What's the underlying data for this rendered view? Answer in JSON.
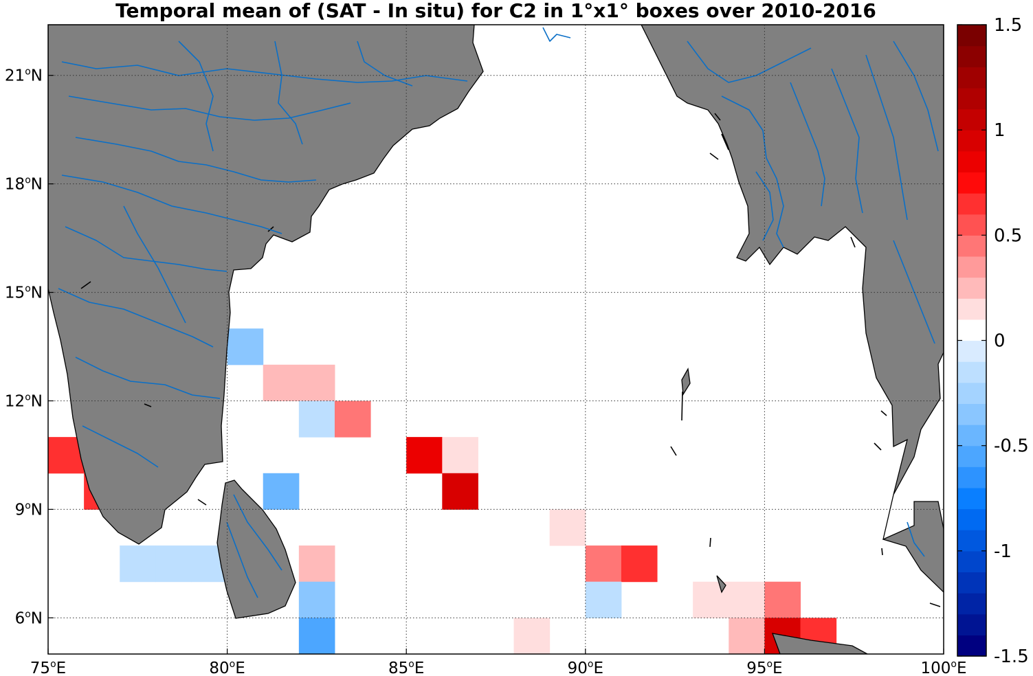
{
  "title": "Temporal mean of (SAT - In situ) for C2 in 1°x1° boxes over 2010-2016",
  "map": {
    "lon_range": [
      75,
      100
    ],
    "lat_range": [
      5,
      22.4
    ],
    "land_color": "#808080",
    "river_color": "#0a6fc7",
    "ocean_color": "#ffffff",
    "grid": true,
    "x_ticks": [
      {
        "value": 75,
        "num": "75",
        "sup": "o",
        "suffix": "E"
      },
      {
        "value": 80,
        "num": "80",
        "sup": "o",
        "suffix": "E"
      },
      {
        "value": 85,
        "num": "85",
        "sup": "o",
        "suffix": "E"
      },
      {
        "value": 90,
        "num": "90",
        "sup": "o",
        "suffix": "E"
      },
      {
        "value": 95,
        "num": "95",
        "sup": "o",
        "suffix": "E"
      },
      {
        "value": 100,
        "num": "100",
        "sup": "o",
        "suffix": "E"
      }
    ],
    "y_ticks": [
      {
        "value": 6,
        "num": "6",
        "sup": "o",
        "suffix": "N"
      },
      {
        "value": 9,
        "num": "9",
        "sup": "o",
        "suffix": "N"
      },
      {
        "value": 12,
        "num": "12",
        "sup": "o",
        "suffix": "N"
      },
      {
        "value": 15,
        "num": "15",
        "sup": "o",
        "suffix": "N"
      },
      {
        "value": 18,
        "num": "18",
        "sup": "o",
        "suffix": "N"
      },
      {
        "value": 21,
        "num": "21",
        "sup": "o",
        "suffix": "N"
      }
    ]
  },
  "colorbar": {
    "range": [
      -1.5,
      1.5
    ],
    "levels": 30,
    "ticks": [
      "1.5",
      "1",
      "0.5",
      "0",
      "-0.5",
      "-1",
      "-1.5"
    ],
    "tick_values": [
      1.5,
      1,
      0.5,
      0,
      -0.5,
      -1,
      -1.5
    ],
    "colors": [
      "#000080",
      "#001493",
      "#0024a6",
      "#0034b9",
      "#0046cc",
      "#0058df",
      "#006af2",
      "#0a7fff",
      "#2d93ff",
      "#4ca6ff",
      "#6ab6ff",
      "#8ac6ff",
      "#a4d3ff",
      "#bddfff",
      "#d9ebff",
      "#ffffff",
      "#ffdede",
      "#ffbaba",
      "#ff9a9a",
      "#ff7676",
      "#ff5252",
      "#ff3030",
      "#ff0a0a",
      "#ec0000",
      "#d80000",
      "#c40000",
      "#b00000",
      "#a00000",
      "#8c0000",
      "#7a0000"
    ]
  },
  "chart_data": {
    "type": "heatmap",
    "title": "Temporal mean of (SAT - In situ) for C2 in 1°x1° boxes over 2010-2016",
    "value_range": [
      -1.5,
      1.5
    ],
    "cells": [
      {
        "lon": 80,
        "lat": 13,
        "value": -0.3
      },
      {
        "lon": 81,
        "lat": 12,
        "value": 0.25
      },
      {
        "lon": 82,
        "lat": 12,
        "value": 0.25
      },
      {
        "lon": 82,
        "lat": 11,
        "value": -0.12
      },
      {
        "lon": 83,
        "lat": 11,
        "value": 0.4
      },
      {
        "lon": 75,
        "lat": 10,
        "value": 0.6
      },
      {
        "lon": 76,
        "lat": 9,
        "value": 0.6
      },
      {
        "lon": 85,
        "lat": 10,
        "value": 0.85
      },
      {
        "lon": 86,
        "lat": 10,
        "value": 0.12
      },
      {
        "lon": 86,
        "lat": 9,
        "value": 0.95
      },
      {
        "lon": 81,
        "lat": 9,
        "value": -0.5
      },
      {
        "lon": 89,
        "lat": 8,
        "value": 0.12
      },
      {
        "lon": 77,
        "lat": 7,
        "value": -0.1
      },
      {
        "lon": 78,
        "lat": 7,
        "value": -0.1
      },
      {
        "lon": 79,
        "lat": 7,
        "value": -0.1
      },
      {
        "lon": 82,
        "lat": 7,
        "value": 0.25
      },
      {
        "lon": 90,
        "lat": 7,
        "value": 0.4
      },
      {
        "lon": 91,
        "lat": 7,
        "value": 0.6
      },
      {
        "lon": 82,
        "lat": 6,
        "value": -0.3
      },
      {
        "lon": 90,
        "lat": 6,
        "value": -0.2
      },
      {
        "lon": 93,
        "lat": 6,
        "value": 0.12
      },
      {
        "lon": 94,
        "lat": 6,
        "value": 0.12
      },
      {
        "lon": 95,
        "lat": 6,
        "value": 0.4
      },
      {
        "lon": 82,
        "lat": 5,
        "value": -0.6
      },
      {
        "lon": 88,
        "lat": 5,
        "value": 0.12
      },
      {
        "lon": 94,
        "lat": 5,
        "value": 0.25
      },
      {
        "lon": 95,
        "lat": 5,
        "value": 0.95
      },
      {
        "lon": 96,
        "lat": 5,
        "value": 0.6
      }
    ]
  }
}
